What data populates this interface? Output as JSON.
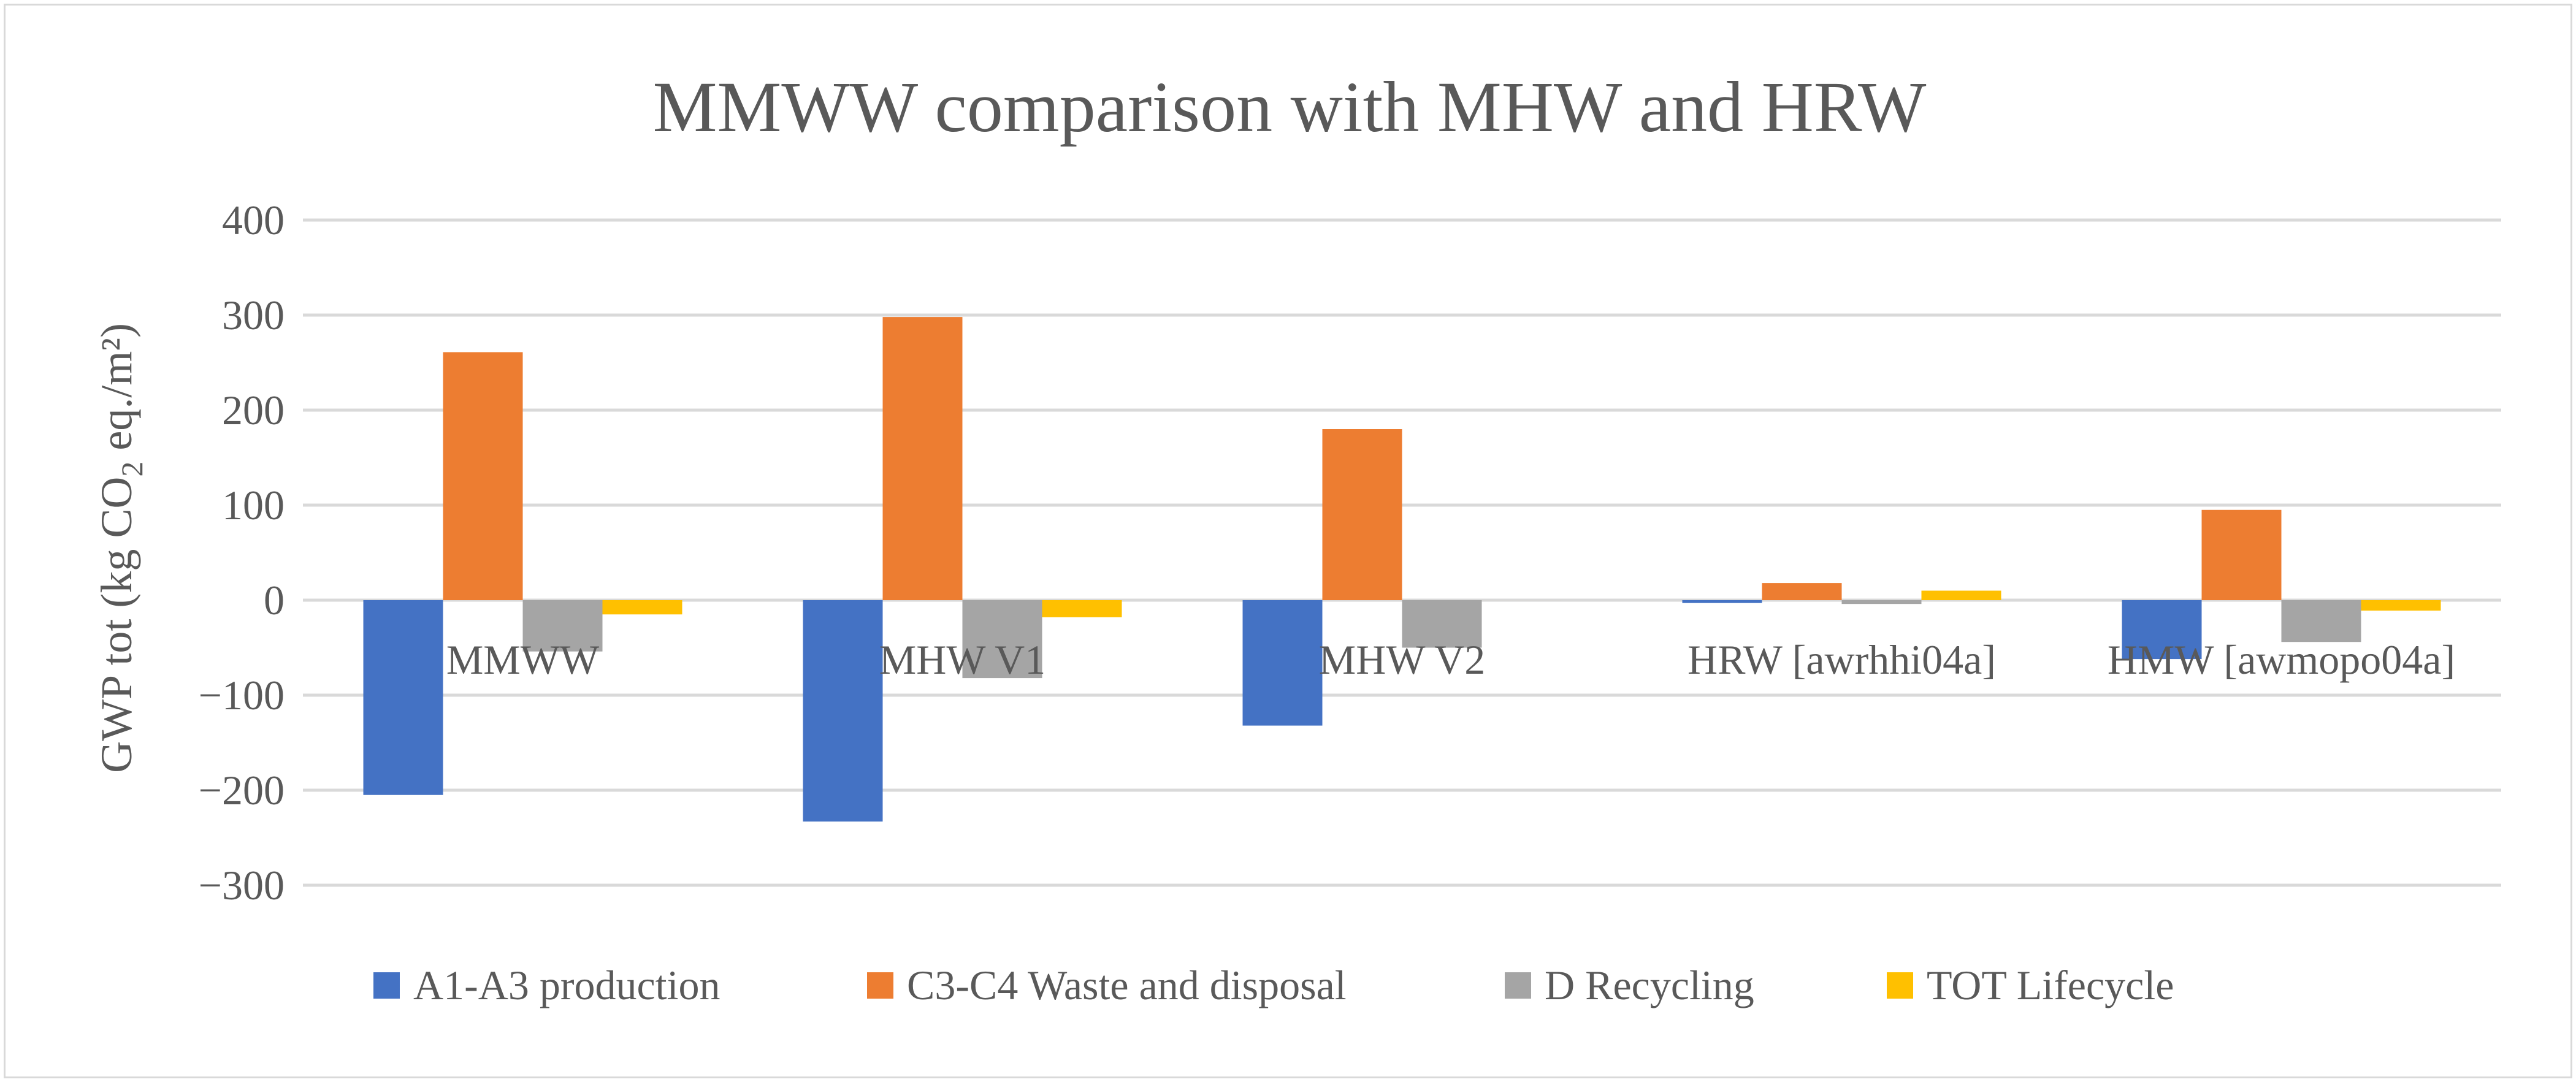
{
  "chart_data": {
    "type": "bar",
    "title": "MMWW  comparison with MHW and HRW",
    "ylabel_prefix": "GWP tot (kg CO",
    "ylabel_sub": "2",
    "ylabel_suffix": " eq./m²)",
    "xlabel": "",
    "ylim": [
      -300,
      400
    ],
    "ytick_step": 100,
    "ytick_labels": [
      "400",
      "300",
      "200",
      "100",
      "0",
      "−100",
      "−200",
      "−300"
    ],
    "grid": true,
    "legend_position": "bottom",
    "categories": [
      "MMWW",
      "MHW V1",
      "MHW V2",
      "HRW [awrhhi04a]",
      "HMW [awmopo04a]"
    ],
    "series": [
      {
        "name": "A1-A3 production",
        "color": "#4472c4",
        "values": [
          -205,
          -233,
          -132,
          -3,
          -62
        ]
      },
      {
        "name": "C3-C4 Waste and disposal",
        "color": "#ed7d31",
        "values": [
          261,
          298,
          180,
          18,
          95
        ]
      },
      {
        "name": "D Recycling",
        "color": "#a5a5a5",
        "values": [
          -54,
          -82,
          -50,
          -4,
          -44
        ]
      },
      {
        "name": "TOT Lifecycle",
        "color": "#ffc000",
        "values": [
          -15,
          -18,
          0,
          10,
          -11
        ]
      }
    ]
  }
}
